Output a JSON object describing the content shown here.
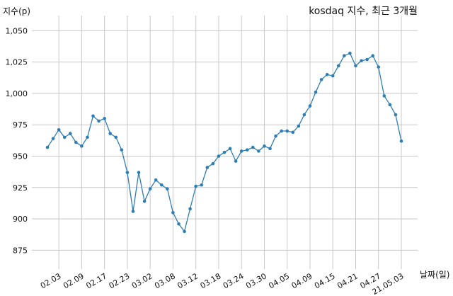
{
  "chart_data": {
    "type": "line",
    "title": "kosdaq 지수, 최근 3개월",
    "xlabel": "날짜(일)",
    "ylabel": "지수(p)",
    "ylim": [
      860,
      1062
    ],
    "yticks": [
      875,
      900,
      925,
      950,
      975,
      1000,
      1025,
      1050
    ],
    "ytick_labels": [
      "875",
      "900",
      "925",
      "950",
      "975",
      "1,000",
      "1,025",
      "1,050"
    ],
    "xtick_labels": [
      "02.03",
      "02.09",
      "02.17",
      "02.23",
      "03.02",
      "03.08",
      "03.12",
      "03.18",
      "03.24",
      "03.30",
      "04.05",
      "04.09",
      "04.15",
      "04.21",
      "04.27",
      "21.05.03"
    ],
    "xtick_index": [
      3,
      7,
      11,
      15,
      19,
      23,
      27,
      31,
      35,
      39,
      43,
      47,
      51,
      55,
      59,
      63
    ],
    "grid": true,
    "series": [
      {
        "color": "#2e7db3",
        "values": [
          957,
          964,
          971,
          965,
          968,
          961,
          958,
          965,
          982,
          978,
          980,
          968,
          965,
          955,
          937,
          906,
          937,
          914,
          924,
          931,
          927,
          924,
          905,
          896,
          890,
          908,
          926,
          927,
          941,
          944,
          950,
          953,
          956,
          946,
          954,
          955,
          957,
          954,
          958,
          956,
          966,
          970,
          970,
          969,
          974,
          983,
          990,
          1001,
          1011,
          1015,
          1014,
          1022,
          1030,
          1032,
          1022,
          1026,
          1027,
          1030,
          1021,
          998,
          991,
          983,
          962
        ]
      }
    ]
  }
}
